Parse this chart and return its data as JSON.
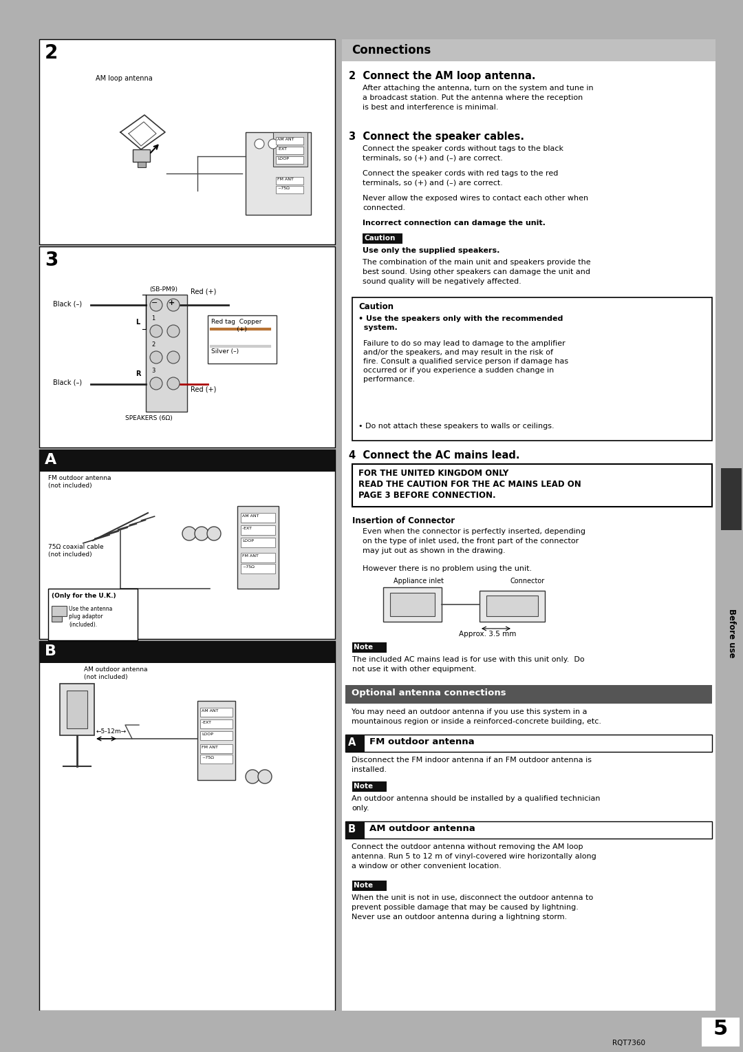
{
  "page_bg": "#b0b0b0",
  "left_panel_bg": "#c0c0c0",
  "left_box_bg": "#ffffff",
  "right_panel_bg": "#ffffff",
  "connections_bar_color": "#c0c0c0",
  "optional_bar_color": "#555555",
  "dark_bar_color": "#111111",
  "note_bar_color": "#111111",
  "caution_bar_color": "#111111",
  "text_color": "#000000",
  "white": "#ffffff",
  "page_number": "5",
  "rqt_number": "RQT7360",
  "connections_title": "Connections",
  "step2_title": "2  Connect the AM loop antenna.",
  "step2_body": "After attaching the antenna, turn on the system and tune in\na broadcast station. Put the antenna where the reception\nis best and interference is minimal.",
  "step3_title": "3  Connect the speaker cables.",
  "step3_body1": "Connect the speaker cords without tags to the black\nterminals, so (+) and (–) are correct.",
  "step3_body2": "Connect the speaker cords with red tags to the red\nterminals, so (+) and (–) are correct.",
  "step3_body3": "Never allow the exposed wires to contact each other when\nconnected.",
  "step3_bold": "Incorrect connection can damage the unit.",
  "caution_label": "Caution",
  "caution_bold": "Use only the supplied speakers.",
  "caution_body": "The combination of the main unit and speakers provide the\nbest sound. Using other speakers can damage the unit and\nsound quality will be negatively affected.",
  "caution_box_title": "Caution",
  "caution_box_b1": "• Use the speakers only with the recommended\n  system.",
  "caution_box_b1b": "  Failure to do so may lead to damage to the amplifier\n  and/or the speakers, and may result in the risk of\n  fire. Consult a qualified service person if damage has\n  occurred or if you experience a sudden change in\n  performance.",
  "caution_box_b2": "• Do not attach these speakers to walls or ceilings.",
  "step4_title": "4  Connect the AC mains lead.",
  "uk_line1": "FOR THE UNITED KINGDOM ONLY",
  "uk_line2": "READ THE CAUTION FOR THE AC MAINS LEAD ON",
  "uk_line3": "PAGE 3 BEFORE CONNECTION.",
  "insertion_title": "Insertion of Connector",
  "insertion_b1": "Even when the connector is perfectly inserted, depending\non the type of inlet used, the front part of the connector\nmay jut out as shown in the drawing.",
  "insertion_b2": "However there is no problem using the unit.",
  "appliance_label": "Appliance inlet",
  "connector_label": "Connector",
  "approx_label": "Approx. 3.5 mm",
  "note1_label": "Note",
  "note1_body": "The included AC mains lead is for use with this unit only.  Do\nnot use it with other equipment.",
  "optional_title": "Optional antenna connections",
  "optional_body": "You may need an outdoor antenna if you use this system in a\nmountainous region or inside a reinforced-concrete building, etc.",
  "fm_label": "A",
  "fm_title": "FM outdoor antenna",
  "fm_body": "Disconnect the FM indoor antenna if an FM outdoor antenna is\ninstalled.",
  "note2_label": "Note",
  "note2_body": "An outdoor antenna should be installed by a qualified technician\nonly.",
  "am_label": "B",
  "am_title": "AM outdoor antenna",
  "am_body": "Connect the outdoor antenna without removing the AM loop\nantenna. Run 5 to 12 m of vinyl-covered wire horizontally along\na window or other convenient location.",
  "note3_label": "Note",
  "note3_body": "When the unit is not in use, disconnect the outdoor antenna to\nprevent possible damage that may be caused by lightning.\nNever use an outdoor antenna during a lightning storm.",
  "before_use_text": "Before use",
  "sec2_label": "2",
  "sec3_label": "3",
  "secA_label": "A",
  "secB_label": "B",
  "am_loop_label": "AM loop antenna",
  "fm_out_label": "FM outdoor antenna\n(not included)",
  "coax_label": "75Ω coaxial cable\n(not included)",
  "only_uk": "(Only for the U.K.)",
  "uk_plug": "Use the antenna\nplug adaptor\n(included).",
  "am_out_label": "AM outdoor antenna\n(not included)",
  "dist_label": "←5-12m→",
  "sb_pm9": "(SB-PM9)",
  "black_neg1": "Black (–)",
  "red_pos1": "Red (+)",
  "red_tag_copper": "Red tag  Copper\n             (+)",
  "silver_neg": "Silver (–)",
  "black_neg2": "Black (–)",
  "speakers_label": "SPEAKERS (6Ω)",
  "red_pos2": "Red (+)"
}
